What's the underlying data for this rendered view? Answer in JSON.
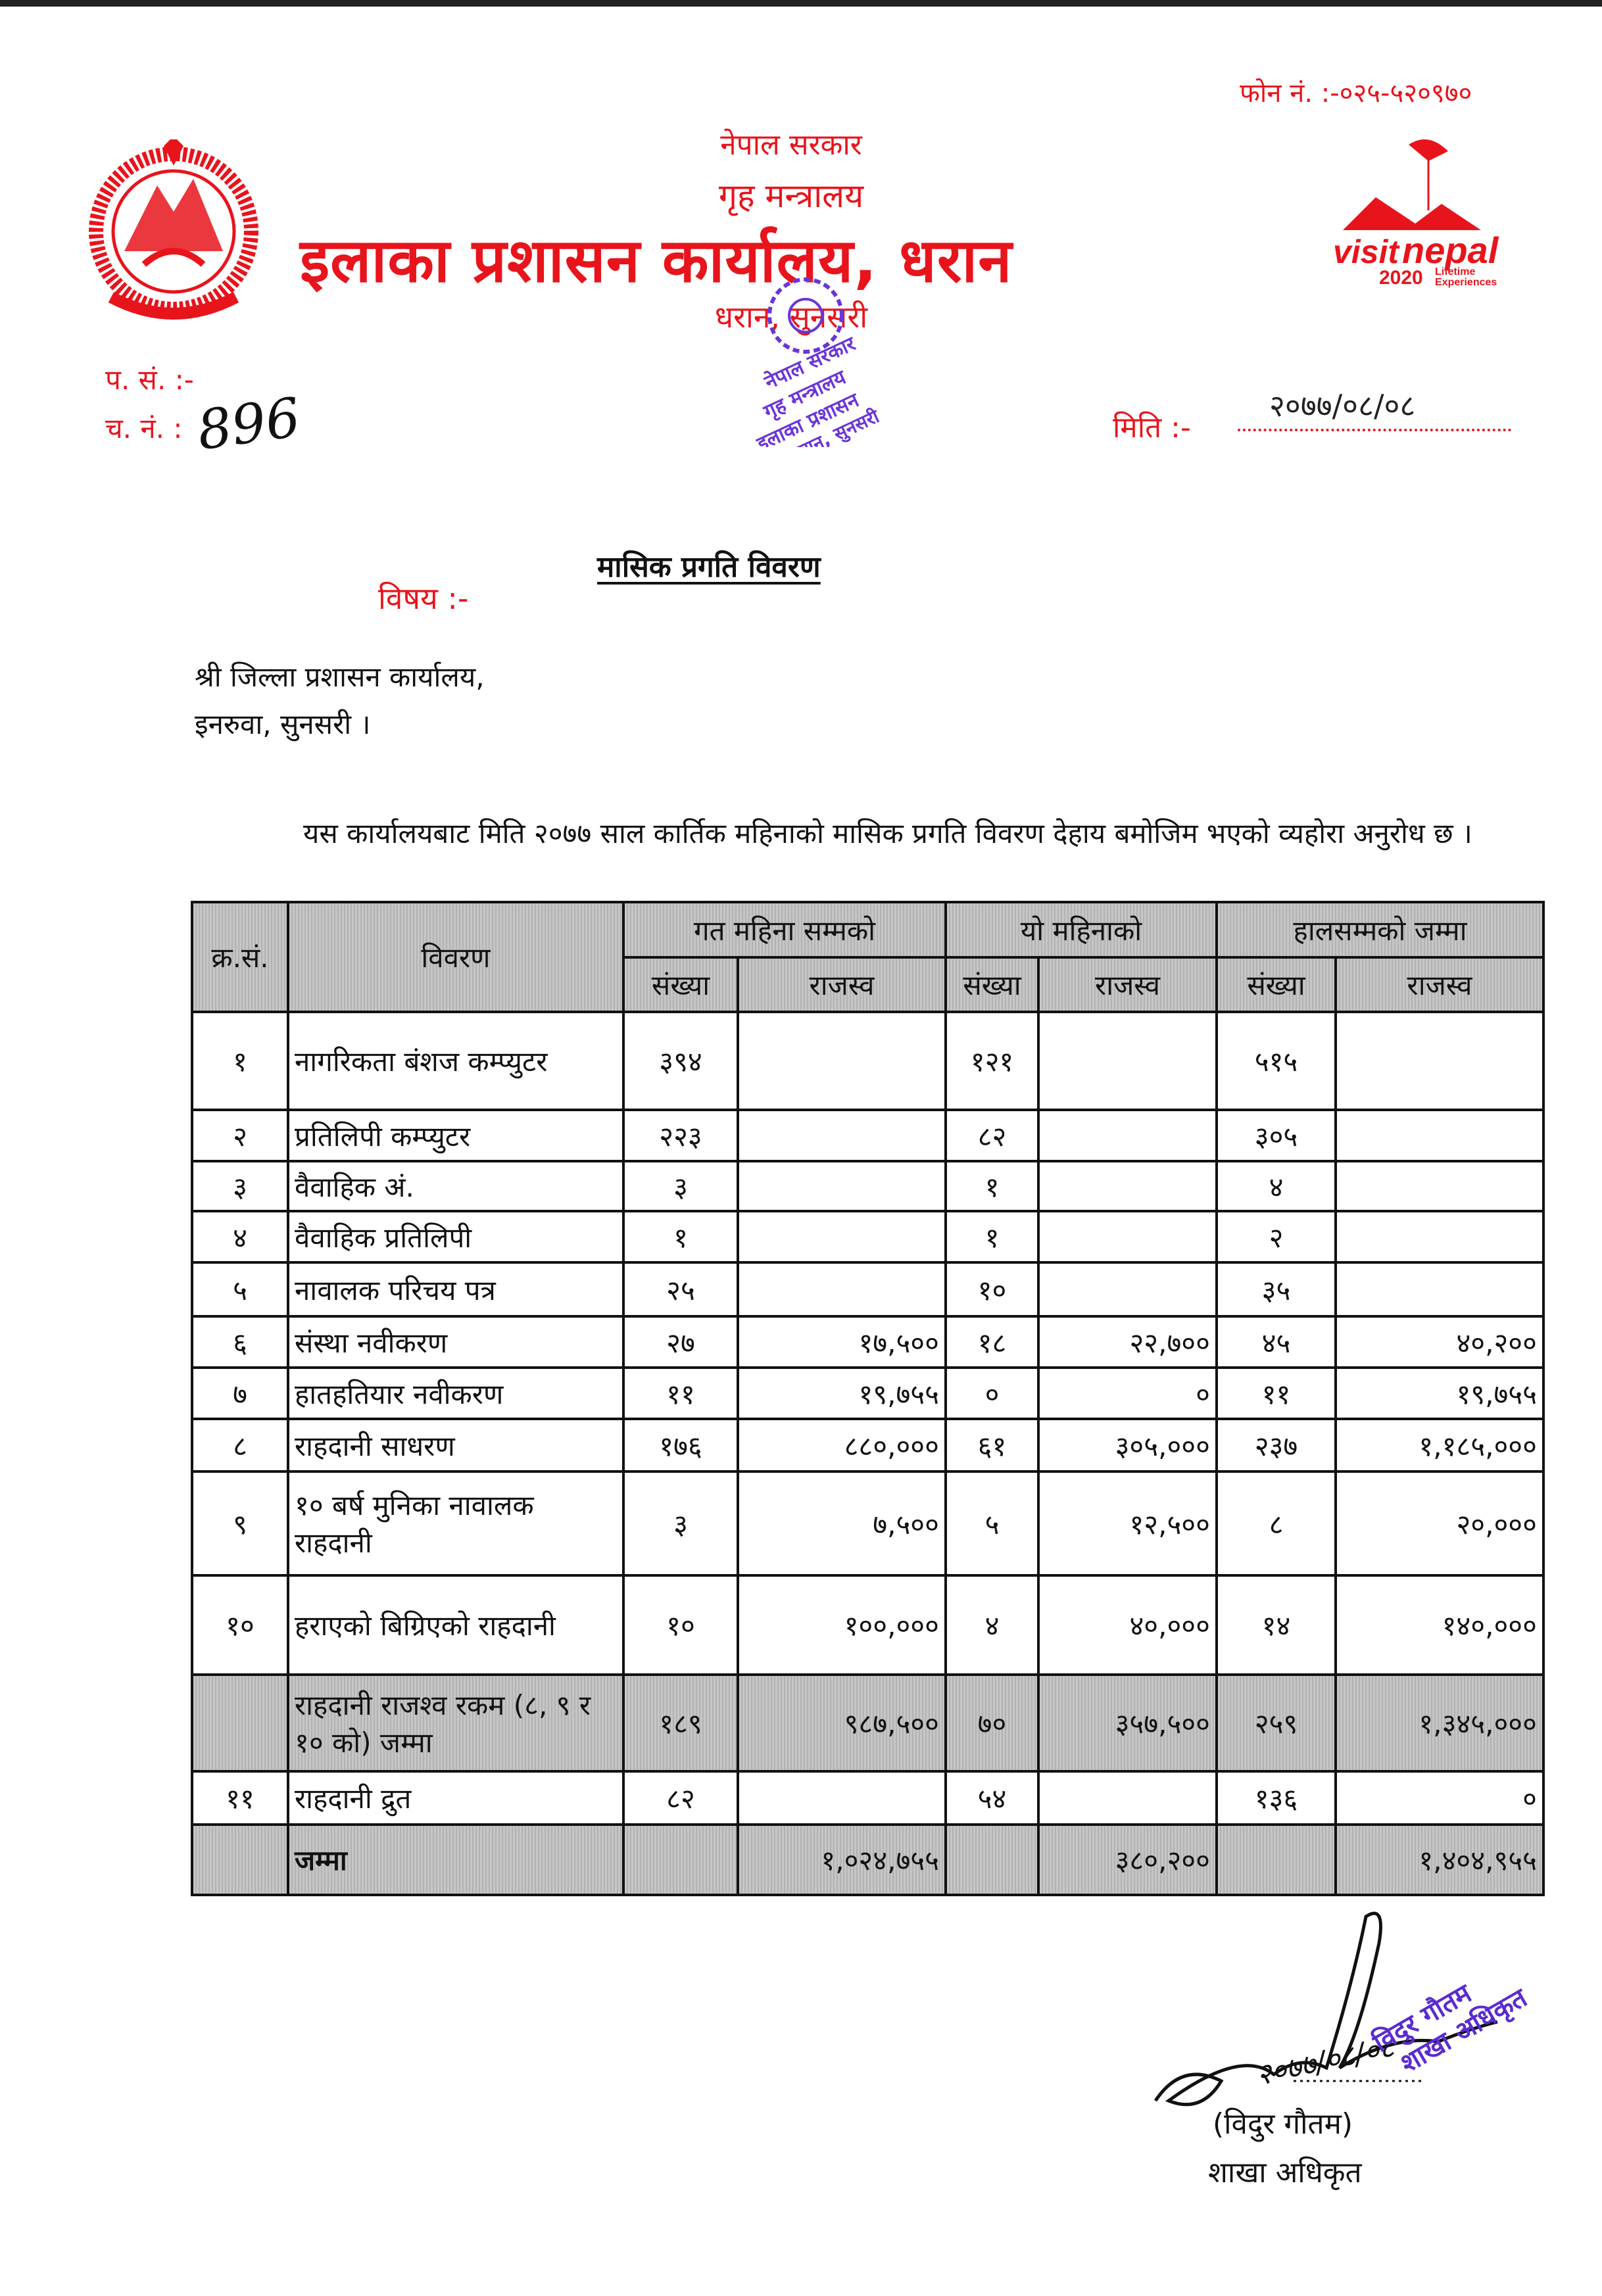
{
  "letterhead": {
    "phone": "फोन नं. :-०२५-५२०९७०",
    "government": "नेपाल सरकार",
    "ministry": "गृह मन्त्रालय",
    "office": "इलाका प्रशासन कार्यालय, धरान",
    "location": "धरान, सुनसरी",
    "logo_visit_nepal": "visit nepal 2020 Lifetime Experiences",
    "office_seal": "नेपाल सरकार गृह मन्त्रालय इलाको प्रशासन कार्यालय धरान, सुनसरी",
    "colors": {
      "letterhead": "#e8141c",
      "stamp": "#5a2bd1"
    }
  },
  "meta": {
    "ref_label": "प. सं. :-",
    "dispatch_label": "च. नं. :",
    "dispatch_no": "896",
    "date_label": "मिति :-",
    "date": "२०७७/०८/०८"
  },
  "subject": {
    "label": "विषय :-",
    "title": "मासिक प्रगति विवरण"
  },
  "addressee": {
    "line1": "श्री जिल्ला प्रशासन कार्यालय,",
    "line2": "इनरुवा, सुनसरी ।"
  },
  "body": "यस कार्यालयबाट मिति २०७७ साल कार्तिक महिनाको मासिक प्रगति विवरण देहाय बमोजिम भएको व्यहोरा अनुरोध छ ।",
  "table": {
    "headers": {
      "sn": "क्र.सं.",
      "desc": "विवरण",
      "prev": "गत महिना सम्मको",
      "this": "यो महिनाको",
      "total": "हालसम्मको जम्मा",
      "count": "संख्या",
      "revenue": "राजस्व"
    },
    "rows": [
      {
        "sn": "१",
        "desc": "नागरिकता बंशज कम्प्युटर",
        "pc": "३९४",
        "pr": "",
        "tc": "१२१",
        "tr": "",
        "hc": "५१५",
        "hr": ""
      },
      {
        "sn": "२",
        "desc": "प्रतिलिपी कम्प्युटर",
        "pc": "२२३",
        "pr": "",
        "tc": "८२",
        "tr": "",
        "hc": "३०५",
        "hr": ""
      },
      {
        "sn": "३",
        "desc": "वैवाहिक अं.",
        "pc": "३",
        "pr": "",
        "tc": "१",
        "tr": "",
        "hc": "४",
        "hr": ""
      },
      {
        "sn": "४",
        "desc": "वैवाहिक प्रतिलिपी",
        "pc": "१",
        "pr": "",
        "tc": "१",
        "tr": "",
        "hc": "२",
        "hr": ""
      },
      {
        "sn": "५",
        "desc": "नावालक परिचय पत्र",
        "pc": "२५",
        "pr": "",
        "tc": "१०",
        "tr": "",
        "hc": "३५",
        "hr": ""
      },
      {
        "sn": "६",
        "desc": "संस्था नवीकरण",
        "pc": "२७",
        "pr": "१७,५००",
        "tc": "१८",
        "tr": "२२,७००",
        "hc": "४५",
        "hr": "४०,२००"
      },
      {
        "sn": "७",
        "desc": "हातहतियार नवीकरण",
        "pc": "११",
        "pr": "१९,७५५",
        "tc": "०",
        "tr": "०",
        "hc": "११",
        "hr": "१९,७५५"
      },
      {
        "sn": "८",
        "desc": "राहदानी  साधरण",
        "pc": "१७६",
        "pr": "८८०,०००",
        "tc": "६१",
        "tr": "३०५,०००",
        "hc": "२३७",
        "hr": "१,१८५,०००"
      },
      {
        "sn": "९",
        "desc": "१० बर्ष मुनिका नावालक राहदानी",
        "pc": "३",
        "pr": "७,५००",
        "tc": "५",
        "tr": "१२,५००",
        "hc": "८",
        "hr": "२०,०००"
      },
      {
        "sn": "१०",
        "desc": "हराएको बिग्रिएको राहदानी",
        "pc": "१०",
        "pr": "१००,०००",
        "tc": "४",
        "tr": "४०,०००",
        "hc": "१४",
        "hr": "१४०,०००"
      },
      {
        "sn": "",
        "desc": "राहदानी राजश्व रकम (८, ९ र १० को) जम्मा",
        "pc": "१८९",
        "pr": "९८७,५००",
        "tc": "७०",
        "tr": "३५७,५००",
        "hc": "२५९",
        "hr": "१,३४५,०००"
      },
      {
        "sn": "११",
        "desc": "राहदानी द्रुत",
        "pc": "८२",
        "pr": "",
        "tc": "५४",
        "tr": "",
        "hc": "१३६",
        "hr": "०"
      },
      {
        "sn": "",
        "desc": "जम्मा",
        "pc": "",
        "pr": "१,०२४,७५५",
        "tc": "",
        "tr": "३८०,२००",
        "hc": "",
        "hr": "१,४०४,९५५"
      }
    ]
  },
  "signature": {
    "handwritten_date": "२०७७/०८/०८",
    "name": "(विदुर गौतम)",
    "title": "शाखा अधिकृत",
    "stamp_name": "विदुर गौतम",
    "stamp_title": "शाखा अधिकृत"
  }
}
